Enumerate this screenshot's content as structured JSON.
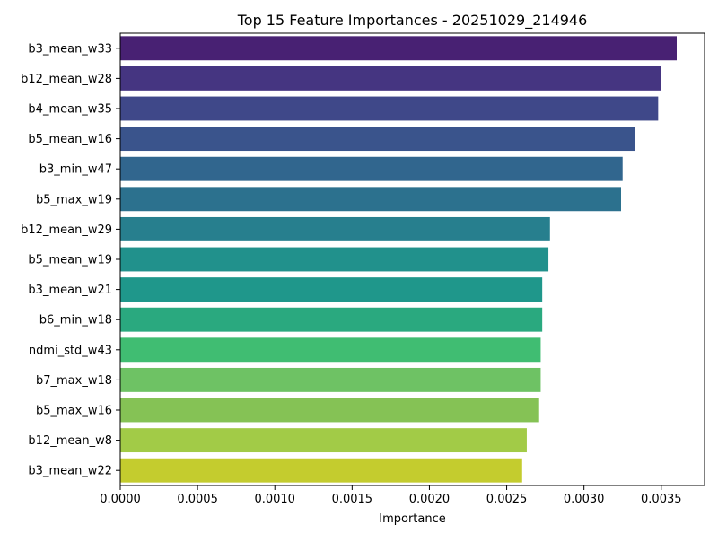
{
  "chart_data": {
    "type": "bar",
    "orientation": "horizontal",
    "title": "Top 15 Feature Importances - 20251029_214946",
    "xlabel": "Importance",
    "ylabel": "",
    "xlim": [
      0,
      0.00378
    ],
    "xticks": [
      "0.0000",
      "0.0005",
      "0.0010",
      "0.0015",
      "0.0020",
      "0.0025",
      "0.0030",
      "0.0035"
    ],
    "grid": false,
    "categories": [
      "b3_mean_w33",
      "b12_mean_w28",
      "b4_mean_w35",
      "b5_mean_w16",
      "b3_min_w47",
      "b5_max_w19",
      "b12_mean_w29",
      "b5_mean_w19",
      "b3_mean_w21",
      "b6_min_w18",
      "ndmi_std_w43",
      "b7_max_w18",
      "b5_max_w16",
      "b12_mean_w8",
      "b3_mean_w22"
    ],
    "values": [
      0.0036,
      0.0035,
      0.00348,
      0.00333,
      0.00325,
      0.00324,
      0.00278,
      0.00277,
      0.00273,
      0.00273,
      0.00272,
      0.00272,
      0.00271,
      0.00263,
      0.0026
    ],
    "colors": [
      "#482173",
      "#453581",
      "#3f4889",
      "#3a548c",
      "#31668e",
      "#2c718e",
      "#277f8e",
      "#21918c",
      "#1f978b",
      "#2aa97f",
      "#40bd72",
      "#6ec264",
      "#85c255",
      "#a2cb47",
      "#c4cc2e"
    ]
  }
}
